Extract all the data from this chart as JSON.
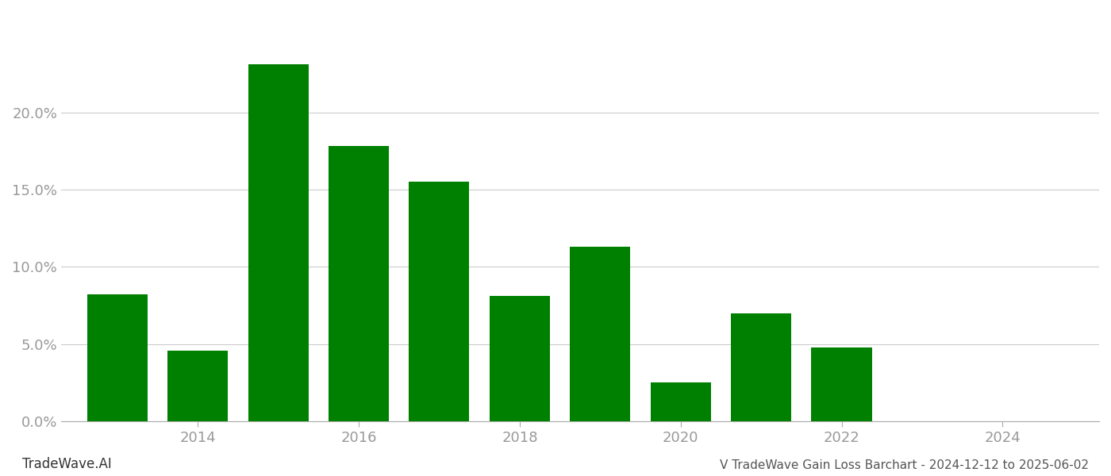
{
  "years": [
    2013,
    2014,
    2015,
    2016,
    2017,
    2018,
    2019,
    2020,
    2021,
    2022,
    2023
  ],
  "values": [
    0.082,
    0.046,
    0.231,
    0.178,
    0.155,
    0.081,
    0.113,
    0.025,
    0.07,
    0.048,
    0.0
  ],
  "bar_color": "#008000",
  "background_color": "#ffffff",
  "grid_color": "#cccccc",
  "tick_color": "#aaaaaa",
  "ylabel_color": "#999999",
  "xlabel_color": "#999999",
  "title_text": "V TradeWave Gain Loss Barchart - 2024-12-12 to 2025-06-02",
  "watermark_text": "TradeWave.AI",
  "xlim": [
    2012.3,
    2025.2
  ],
  "ylim": [
    0.0,
    0.265
  ],
  "xticks": [
    2014,
    2016,
    2018,
    2020,
    2022,
    2024
  ],
  "yticks": [
    0.0,
    0.05,
    0.1,
    0.15,
    0.2
  ],
  "ytick_labels": [
    "0.0%",
    "5.0%",
    "10.0%",
    "15.0%",
    "20.0%"
  ],
  "bar_width": 0.75,
  "figsize": [
    14.0,
    6.0
  ],
  "dpi": 100,
  "tick_fontsize": 13,
  "watermark_fontsize": 12,
  "title_fontsize": 11
}
